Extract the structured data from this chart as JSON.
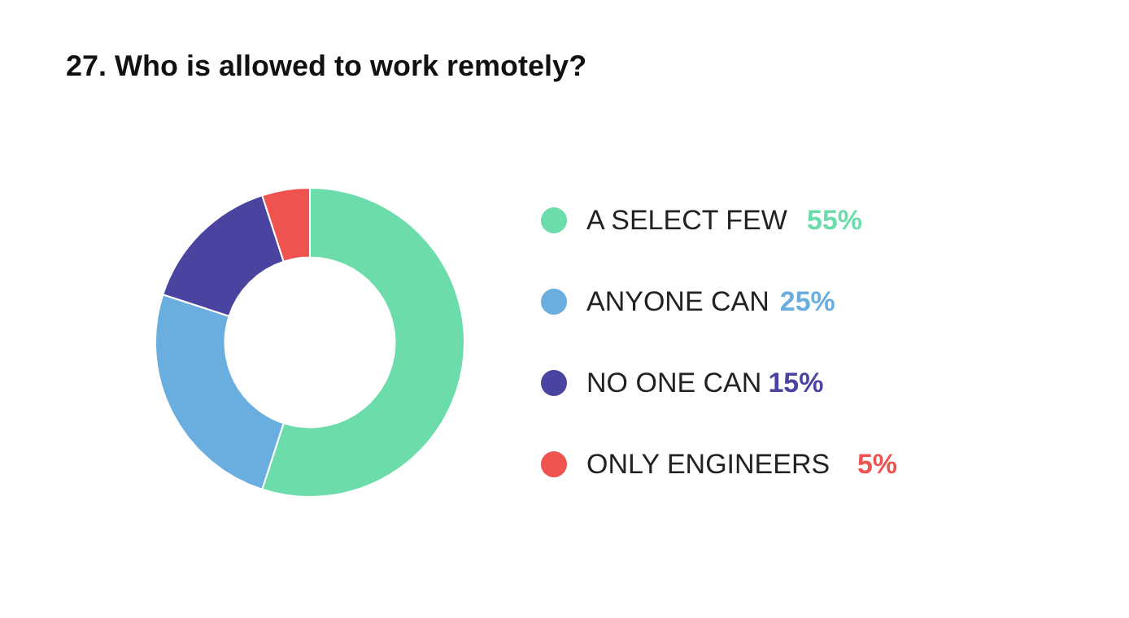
{
  "chart_data": {
    "type": "donut",
    "title": "27. Who is allowed to work remotely?",
    "categories": [
      "A SELECT FEW",
      "ANYONE CAN",
      "NO ONE CAN",
      "ONLY ENGINEERS"
    ],
    "values": [
      55,
      25,
      15,
      5
    ],
    "colors": [
      "#6cdcaa",
      "#6aaee0",
      "#4a44a0",
      "#ee5350"
    ],
    "value_labels": [
      "55%",
      "25%",
      "15%",
      "5%"
    ],
    "legend": "right"
  }
}
